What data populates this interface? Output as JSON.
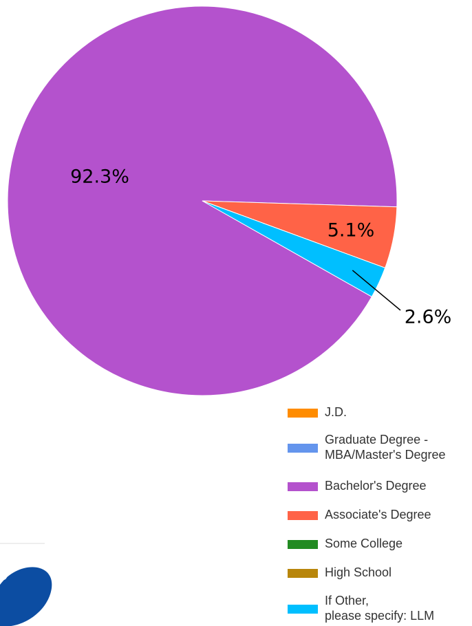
{
  "chart_data": {
    "type": "pie",
    "categories": [
      "J.D.",
      "Graduate Degree -\nMBA/Master's Degree",
      "Bachelor's Degree",
      "Associate's Degree",
      "Some College",
      "High School",
      "If Other,\nplease specify: LLM"
    ],
    "values": [
      0,
      0,
      92.3,
      5.1,
      0,
      0,
      2.6
    ],
    "value_labels": [
      null,
      null,
      "92.3%",
      "5.1%",
      null,
      null,
      "2.6%"
    ],
    "colors": [
      "#ff8c00",
      "#6495ed",
      "#b452cd",
      "#ff6347",
      "#228b22",
      "#b8860b",
      "#00bfff"
    ],
    "legend": "bottom-right"
  }
}
